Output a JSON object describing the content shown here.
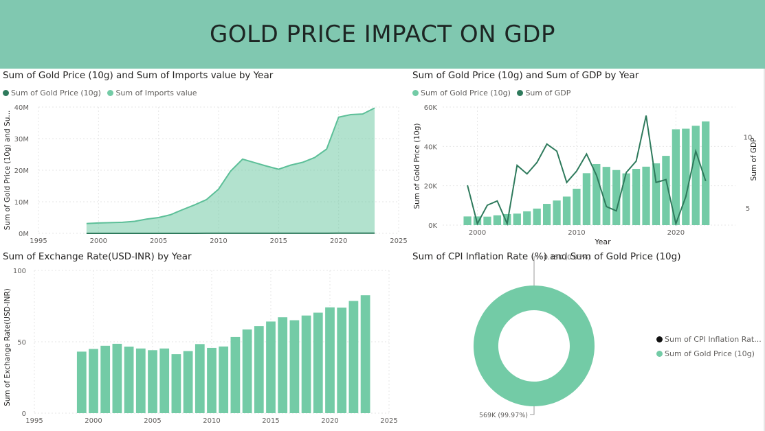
{
  "page": {
    "title": "GOLD PRICE IMPACT ON GDP"
  },
  "colors": {
    "banner": "#80c8b0",
    "light_teal": "#73cba6",
    "dark_teal": "#2e7a5c",
    "black": "#111111"
  },
  "chart_data": [
    {
      "id": "imports",
      "type": "area",
      "title": "Sum of Gold Price (10g) and Sum of Imports value by Year",
      "xlabel": "",
      "ylabel": "Sum of Gold Price (10g) and Su...",
      "xlim": [
        1995,
        2025
      ],
      "ylim": [
        0,
        40000000
      ],
      "xticks": [
        1995,
        2000,
        2005,
        2010,
        2015,
        2020,
        2025
      ],
      "yticks": [
        {
          "v": 0,
          "label": "0M"
        },
        {
          "v": 10000000,
          "label": "10M"
        },
        {
          "v": 20000000,
          "label": "20M"
        },
        {
          "v": 30000000,
          "label": "30M"
        },
        {
          "v": 40000000,
          "label": "40M"
        }
      ],
      "legend": [
        {
          "name": "Sum of Gold Price (10g)",
          "color": "#2e7a5c"
        },
        {
          "name": "Sum of Imports value",
          "color": "#73cba6"
        }
      ],
      "x": [
        1999,
        2000,
        2001,
        2002,
        2003,
        2004,
        2005,
        2006,
        2007,
        2008,
        2009,
        2010,
        2011,
        2012,
        2013,
        2014,
        2015,
        2016,
        2017,
        2018,
        2019,
        2020,
        2021,
        2022,
        2023
      ],
      "series": [
        {
          "name": "Sum of Imports value",
          "values": [
            3100000,
            3300000,
            3400000,
            3500000,
            3800000,
            4500000,
            5000000,
            5900000,
            7500000,
            9000000,
            10700000,
            14000000,
            19700000,
            23500000,
            22400000,
            21300000,
            20300000,
            21600000,
            22500000,
            24000000,
            26700000,
            36800000,
            37600000,
            37800000,
            39700000
          ]
        },
        {
          "name": "Sum of Gold Price (10g)",
          "values": [
            4400,
            4400,
            4300,
            4990,
            5600,
            5850,
            7000,
            8400,
            10800,
            12500,
            14500,
            18500,
            26400,
            31050,
            29600,
            28000,
            26300,
            28600,
            29700,
            31400,
            35200,
            48700,
            49000,
            50500,
            52700
          ]
        }
      ]
    },
    {
      "id": "gdp",
      "type": "bar+line",
      "title": "Sum of Gold Price (10g) and Sum of GDP by Year",
      "xlabel": "Year",
      "ylabel": "Sum of Gold Price (10g)",
      "y2label": "Sum of GDP",
      "xlim": [
        1996.5,
        2026
      ],
      "ylim": [
        0,
        60000
      ],
      "y2lim": [
        3.8,
        12.1
      ],
      "xticks": [
        2000,
        2010,
        2020
      ],
      "yticks": [
        {
          "v": 0,
          "label": "0K"
        },
        {
          "v": 20000,
          "label": "20K"
        },
        {
          "v": 40000,
          "label": "40K"
        },
        {
          "v": 60000,
          "label": "60K"
        }
      ],
      "y2ticks": [
        5,
        10
      ],
      "legend": [
        {
          "name": "Sum of Gold Price (10g)",
          "color": "#73cba6"
        },
        {
          "name": "Sum of GDP",
          "color": "#2e7a5c"
        }
      ],
      "x": [
        1999,
        2000,
        2001,
        2002,
        2003,
        2004,
        2005,
        2006,
        2007,
        2008,
        2009,
        2010,
        2011,
        2012,
        2013,
        2014,
        2015,
        2016,
        2017,
        2018,
        2019,
        2020,
        2021,
        2022,
        2023
      ],
      "series": [
        {
          "name": "Sum of Gold Price (10g)",
          "type": "bar",
          "values": [
            4400,
            4400,
            4300,
            4990,
            5600,
            5850,
            7000,
            8400,
            10800,
            12500,
            14500,
            18500,
            26400,
            31050,
            29600,
            28000,
            26300,
            28600,
            29700,
            31400,
            35200,
            48700,
            49000,
            50500,
            52700
          ]
        },
        {
          "name": "Sum of GDP",
          "type": "line",
          "values": [
            6.6,
            3.9,
            5.2,
            5.5,
            3.9,
            8.0,
            7.4,
            8.2,
            9.5,
            9.0,
            6.8,
            7.6,
            8.8,
            7.3,
            5.1,
            4.8,
            7.5,
            8.3,
            11.5,
            6.8,
            7.0,
            3.9,
            5.8,
            9.0,
            6.9
          ]
        }
      ]
    },
    {
      "id": "exchange",
      "type": "bar",
      "title": "Sum of Exchange Rate(USD-INR) by Year",
      "xlabel": "",
      "ylabel": "Sum of Exchange Rate(USD-INR)",
      "xlim": [
        1995,
        2025
      ],
      "ylim": [
        0,
        100
      ],
      "xticks": [
        1995,
        2000,
        2005,
        2010,
        2015,
        2020,
        2025
      ],
      "yticks": [
        {
          "v": 0,
          "label": "0"
        },
        {
          "v": 50,
          "label": "50"
        },
        {
          "v": 100,
          "label": "100"
        }
      ],
      "x": [
        1999,
        2000,
        2001,
        2002,
        2003,
        2004,
        2005,
        2006,
        2007,
        2008,
        2009,
        2010,
        2011,
        2012,
        2013,
        2014,
        2015,
        2016,
        2017,
        2018,
        2019,
        2020,
        2021,
        2022,
        2023
      ],
      "series": [
        {
          "name": "",
          "values": [
            43.1,
            45.0,
            47.2,
            48.6,
            46.6,
            45.3,
            44.1,
            45.3,
            41.3,
            43.5,
            48.4,
            45.7,
            46.7,
            53.4,
            58.6,
            61.0,
            64.2,
            67.2,
            65.1,
            68.4,
            70.4,
            74.1,
            73.9,
            78.6,
            82.6
          ]
        }
      ]
    },
    {
      "id": "donut",
      "type": "pie",
      "title": "Sum of CPI Inflation Rate (%) and Sum of Gold Price (10g)",
      "legend": [
        {
          "name": "Sum of CPI Inflation Rat...",
          "color": "#111111"
        },
        {
          "name": "Sum of Gold Price (10g)",
          "color": "#73cba6"
        }
      ],
      "slices": [
        {
          "name": "Sum of CPI Inflation Rate (%)",
          "value": 150,
          "label": "0.15K (0.03%)"
        },
        {
          "name": "Sum of Gold Price (10g)",
          "value": 569000,
          "label": "569K (99.97%)"
        }
      ]
    }
  ]
}
